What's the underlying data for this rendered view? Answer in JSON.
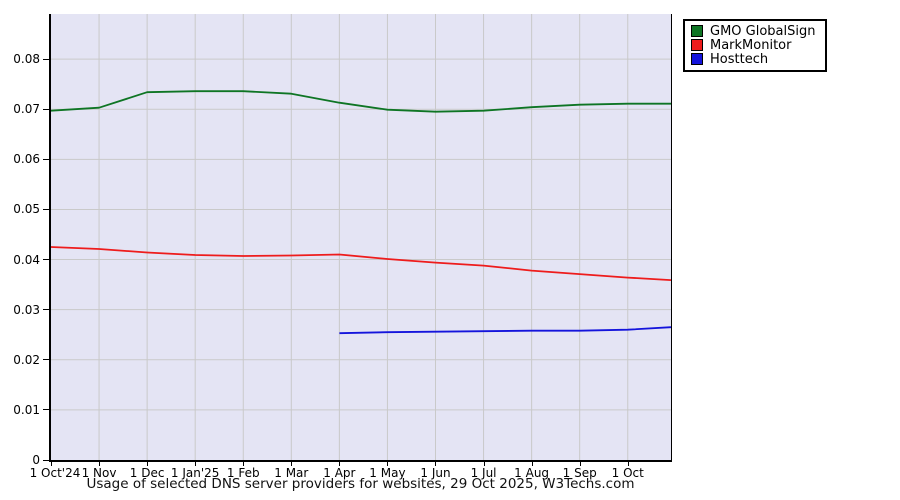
{
  "chart_data": {
    "type": "line",
    "title": "Usage of selected DNS server providers for websites, 29 Oct 2025, W3Techs.com",
    "grid": true,
    "legend_position": "top-right-outside",
    "plot_bg": "#e4e4f4",
    "grid_color": "#c9c9c9",
    "ylim": [
      0,
      0.089
    ],
    "xlim_months": [
      0,
      12.9
    ],
    "x_tick_labels": [
      "1 Oct'24",
      "1 Nov",
      "1 Dec",
      "1 Jan'25",
      "1 Feb",
      "1 Mar",
      "1 Apr",
      "1 May",
      "1 Jun",
      "1 Jul",
      "1 Aug",
      "1 Sep",
      "1 Oct"
    ],
    "y_tick_labels": [
      "0",
      "0.01",
      "0.02",
      "0.03",
      "0.04",
      "0.05",
      "0.06",
      "0.07",
      "0.08"
    ],
    "y_tick_values": [
      0,
      0.01,
      0.02,
      0.03,
      0.04,
      0.05,
      0.06,
      0.07,
      0.08
    ],
    "series": [
      {
        "name": "GMO GlobalSign",
        "color": "#0e7524",
        "x": [
          0,
          1,
          2,
          3,
          4,
          5,
          6,
          7,
          8,
          9,
          10,
          11,
          12,
          12.9
        ],
        "values": [
          0.0697,
          0.0703,
          0.0734,
          0.0736,
          0.0736,
          0.0731,
          0.0713,
          0.0699,
          0.0695,
          0.0697,
          0.0704,
          0.0709,
          0.0711,
          0.0711
        ]
      },
      {
        "name": "MarkMonitor",
        "color": "#ee1c1c",
        "x": [
          0,
          1,
          2,
          3,
          4,
          5,
          6,
          7,
          8,
          9,
          10,
          11,
          12,
          12.9
        ],
        "values": [
          0.0425,
          0.0421,
          0.0414,
          0.0409,
          0.0407,
          0.0408,
          0.041,
          0.0401,
          0.0394,
          0.0388,
          0.0378,
          0.0371,
          0.0364,
          0.0359
        ]
      },
      {
        "name": "Hosttech",
        "color": "#1414dc",
        "x": [
          6,
          7,
          8,
          9,
          10,
          11,
          12,
          12.9
        ],
        "values": [
          0.0253,
          0.0255,
          0.0256,
          0.0257,
          0.0258,
          0.0258,
          0.026,
          0.0265
        ]
      }
    ]
  }
}
